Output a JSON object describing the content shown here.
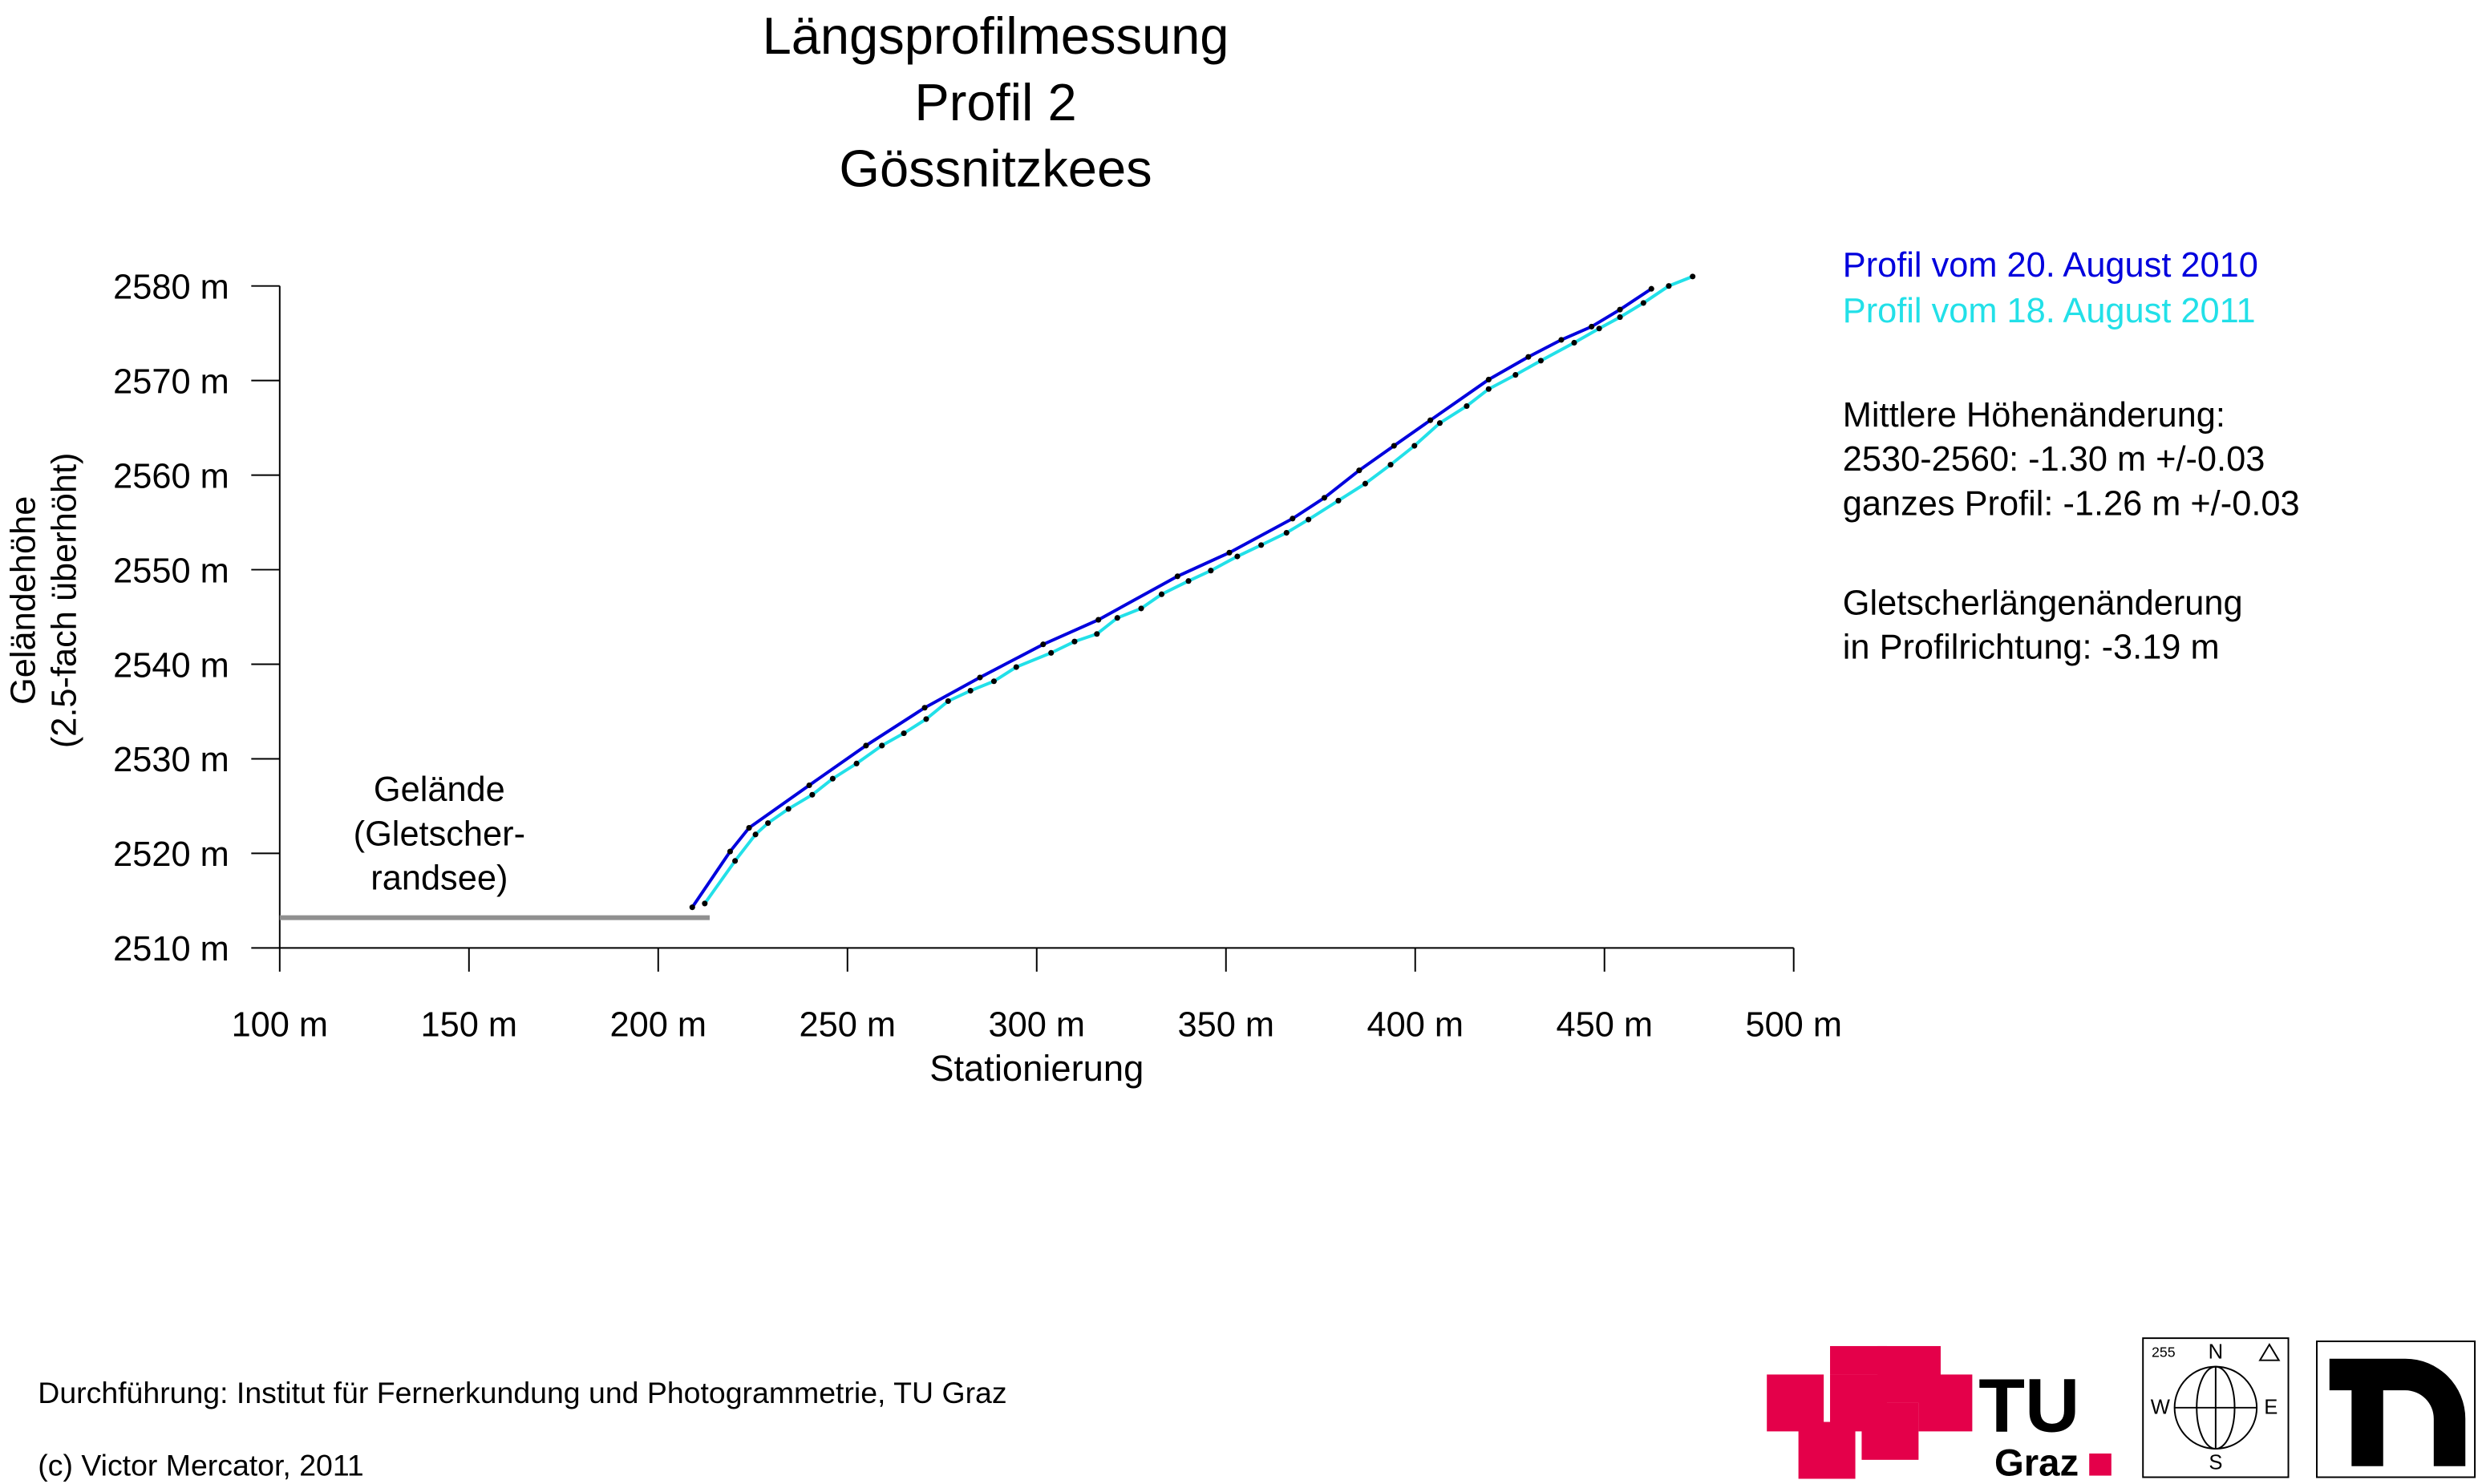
{
  "chart_data": {
    "type": "line",
    "title": [
      "Längsprofilmessung",
      "Profil 2",
      "Gössnitzkees"
    ],
    "x_label": "Stationierung",
    "y_label": [
      "Geländehöhe",
      "(2.5-fach überhöht)"
    ],
    "xlim": [
      100,
      500
    ],
    "ylim": [
      2510,
      2580
    ],
    "xticks": [
      {
        "value": 100,
        "label": "100 m"
      },
      {
        "value": 150,
        "label": "150 m"
      },
      {
        "value": 200,
        "label": "200 m"
      },
      {
        "value": 250,
        "label": "250 m"
      },
      {
        "value": 300,
        "label": "300 m"
      },
      {
        "value": 350,
        "label": "350 m"
      },
      {
        "value": 400,
        "label": "400 m"
      },
      {
        "value": 450,
        "label": "450 m"
      },
      {
        "value": 500,
        "label": "500 m"
      }
    ],
    "yticks": [
      {
        "value": 2510,
        "label": "2510 m"
      },
      {
        "value": 2520,
        "label": "2520 m"
      },
      {
        "value": 2530,
        "label": "2530 m"
      },
      {
        "value": 2540,
        "label": "2540 m"
      },
      {
        "value": 2550,
        "label": "2550 m"
      },
      {
        "value": 2560,
        "label": "2560 m"
      },
      {
        "value": 2570,
        "label": "2570 m"
      },
      {
        "value": 2580,
        "label": "2580 m"
      }
    ],
    "series": [
      {
        "name": "Profil vom 20. August 2010",
        "color": "#0000dd",
        "x": [
          209.0,
          219.0,
          224.0,
          239.9,
          254.9,
          270.4,
          285.0,
          301.7,
          316.3,
          337.2,
          350.9,
          367.6,
          376.0,
          385.2,
          394.4,
          404.0,
          419.4,
          429.9,
          438.6,
          446.6,
          454.1,
          462.4
        ],
        "values": [
          2514.3,
          2520.2,
          2522.7,
          2527.2,
          2531.4,
          2535.4,
          2538.6,
          2542.1,
          2544.7,
          2549.3,
          2551.8,
          2555.4,
          2557.6,
          2560.5,
          2563.1,
          2565.8,
          2570.1,
          2572.5,
          2574.3,
          2575.7,
          2577.5,
          2579.7
        ]
      },
      {
        "name": "Profil vom 18. August 2011",
        "color": "#22e0e8",
        "x": [
          212.3,
          220.3,
          225.7,
          229.0,
          234.4,
          240.7,
          246.1,
          252.4,
          259.1,
          264.9,
          270.8,
          276.6,
          282.5,
          288.7,
          294.6,
          303.8,
          310.0,
          315.9,
          321.3,
          327.6,
          333.0,
          340.1,
          346.0,
          353.0,
          359.3,
          366.0,
          371.8,
          379.7,
          386.8,
          393.5,
          399.8,
          406.5,
          413.6,
          419.4,
          426.5,
          433.2,
          442.0,
          448.6,
          454.1,
          460.3,
          467.0,
          473.3
        ],
        "values": [
          2514.7,
          2519.2,
          2522.0,
          2523.2,
          2524.7,
          2526.2,
          2527.9,
          2529.5,
          2531.4,
          2532.7,
          2534.2,
          2536.1,
          2537.2,
          2538.2,
          2539.7,
          2541.2,
          2542.4,
          2543.2,
          2544.9,
          2545.9,
          2547.4,
          2548.8,
          2549.9,
          2551.4,
          2552.6,
          2553.9,
          2555.3,
          2557.3,
          2559.1,
          2561.1,
          2563.1,
          2565.5,
          2567.3,
          2569.1,
          2570.6,
          2572.1,
          2574.0,
          2575.5,
          2576.7,
          2578.2,
          2580.0,
          2581.0
        ]
      }
    ],
    "ground": {
      "label": [
        "Gelände",
        "(Gletscher-",
        "randsee)"
      ],
      "color": "#909090",
      "x": [
        100,
        213.6
      ],
      "values": [
        2513.2,
        2513.2
      ]
    },
    "annotations": [
      "Mittlere Höhenänderung:",
      "2530-2560: -1.30 m  +/-0.03",
      "ganzes Profil: -1.26 m  +/-0.03",
      "Gletscherlängenänderung",
      "in Profilrichtung: -3.19 m"
    ]
  },
  "footer": [
    "Durchführung: Institut für Fernerkundung und Photogrammetrie, TU Graz",
    "(c) Victor Mercator, 2011"
  ],
  "logos": {
    "tu": "TU",
    "graz": "Graz",
    "compass": [
      "N",
      "W",
      "E",
      "S",
      "255"
    ]
  }
}
